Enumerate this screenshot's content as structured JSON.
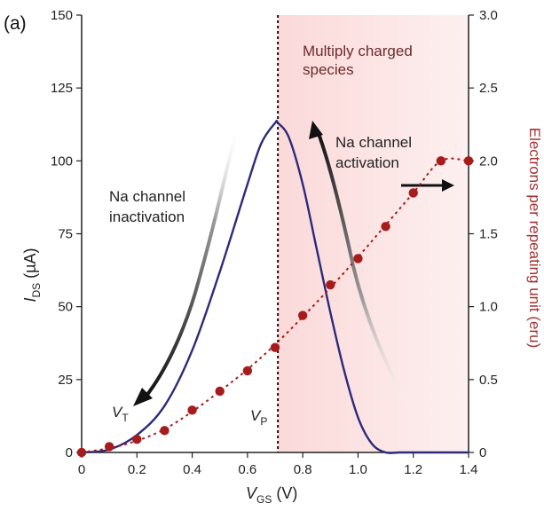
{
  "panel_label": "(a)",
  "colors": {
    "current_curve": "#2b2b7a",
    "eru_series": "#a61c1c",
    "shade": "#f9dede",
    "axis": "#222222"
  },
  "chart_data": {
    "type": "line",
    "xlabel": {
      "main": "V",
      "sub": "GS",
      "unit": " (V)"
    },
    "ylabel_left": {
      "main": "I",
      "sub": "DS",
      "unit": " (µA)"
    },
    "ylabel_right": "Electrons per repeating unit (eru)",
    "xlim": [
      0,
      1.4
    ],
    "ylim_left": [
      0,
      150
    ],
    "ylim_right": [
      0,
      3.0
    ],
    "x_ticks": [
      "0",
      "0.2",
      "0.4",
      "0.6",
      "0.8",
      "1.0",
      "1.2",
      "1.4"
    ],
    "x_tick_values": [
      0,
      0.2,
      0.4,
      0.6,
      0.8,
      1.0,
      1.2,
      1.4
    ],
    "y_left_ticks": [
      "0",
      "25",
      "50",
      "75",
      "100",
      "125",
      "150"
    ],
    "y_left_tick_values": [
      0,
      25,
      50,
      75,
      100,
      125,
      150
    ],
    "y_right_ticks": [
      "0",
      "0.5",
      "1.0",
      "1.5",
      "2.0",
      "2.5",
      "3.0"
    ],
    "y_right_tick_values": [
      0,
      0.5,
      1.0,
      1.5,
      2.0,
      2.5,
      3.0
    ],
    "vline_x": 0.71,
    "shade_from_x": 0.71,
    "series": [
      {
        "axis": "left",
        "style": "solid-line",
        "x": [
          0,
          0.1,
          0.2,
          0.3,
          0.4,
          0.5,
          0.6,
          0.65,
          0.7,
          0.71,
          0.75,
          0.8,
          0.85,
          0.9,
          0.95,
          1.0,
          1.05,
          1.1,
          1.15,
          1.2,
          1.3,
          1.4
        ],
        "y": [
          0,
          1,
          6,
          16,
          35,
          62,
          92,
          106,
          113,
          113,
          108,
          92,
          70,
          48,
          28,
          12,
          3,
          0,
          0,
          0,
          0,
          0
        ]
      },
      {
        "axis": "right",
        "style": "dotted-line-with-markers",
        "x": [
          0,
          0.1,
          0.2,
          0.3,
          0.4,
          0.5,
          0.6,
          0.7,
          0.8,
          0.9,
          1.0,
          1.1,
          1.2,
          1.3,
          1.4
        ],
        "y": [
          0,
          0.04,
          0.09,
          0.15,
          0.29,
          0.42,
          0.56,
          0.72,
          0.94,
          1.15,
          1.33,
          1.55,
          1.78,
          2.0,
          2.0
        ],
        "line_x": [
          0,
          0.1,
          0.2,
          0.3,
          0.4,
          0.5,
          0.6,
          0.7,
          0.8,
          0.9,
          1.0,
          1.1,
          1.2,
          1.3,
          1.4
        ],
        "line_y": [
          0,
          0.03,
          0.08,
          0.16,
          0.28,
          0.42,
          0.57,
          0.74,
          0.93,
          1.13,
          1.34,
          1.56,
          1.78,
          2.0,
          2.0
        ]
      }
    ],
    "annotations": {
      "multiply_line1": "Multiply charged",
      "multiply_line2": "species",
      "na_act_line1": "Na channel",
      "na_act_line2": "activation",
      "na_inact_line1": "Na channel",
      "na_inact_line2": "inactivation",
      "vt_main": "V",
      "vt_sub": "T",
      "vp_main": "V",
      "vp_sub": "P"
    }
  }
}
